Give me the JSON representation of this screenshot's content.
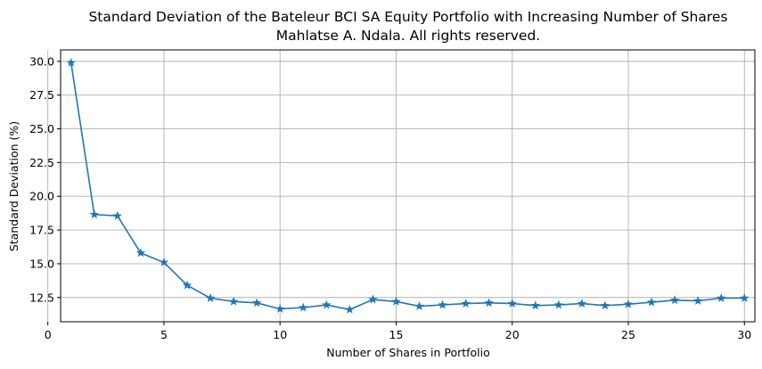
{
  "chart_data": {
    "type": "line",
    "title": "Standard Deviation of the Bateleur BCI SA Equity Portfolio with Increasing Number of Shares",
    "subtitle": "Mahlatse A. Ndala. All rights reserved.",
    "xlabel": "Number of Shares in Portfolio",
    "ylabel": "Standard Deviation (%)",
    "xlim": [
      0.55,
      30.45
    ],
    "ylim": [
      10.7,
      30.85
    ],
    "xticks": [
      0,
      5,
      10,
      15,
      20,
      25,
      30
    ],
    "xtick_labels": [
      "0",
      "5",
      "10",
      "15",
      "20",
      "25",
      "30"
    ],
    "yticks": [
      12.5,
      15.0,
      17.5,
      20.0,
      22.5,
      25.0,
      27.5,
      30.0
    ],
    "ytick_labels": [
      "12.5",
      "15.0",
      "17.5",
      "20.0",
      "22.5",
      "25.0",
      "27.5",
      "30.0"
    ],
    "grid": true,
    "marker": "star",
    "color": "#1f77b4",
    "x": [
      1,
      2,
      3,
      4,
      5,
      6,
      7,
      8,
      9,
      10,
      11,
      12,
      13,
      14,
      15,
      16,
      17,
      18,
      19,
      20,
      21,
      22,
      23,
      24,
      25,
      26,
      27,
      28,
      29,
      30
    ],
    "values": [
      29.9,
      18.65,
      18.55,
      15.8,
      15.1,
      13.4,
      12.45,
      12.2,
      12.1,
      11.65,
      11.75,
      11.95,
      11.6,
      12.35,
      12.2,
      11.85,
      11.95,
      12.05,
      12.1,
      12.05,
      11.9,
      11.95,
      12.05,
      11.9,
      12.0,
      12.15,
      12.3,
      12.25,
      12.45,
      12.45
    ]
  }
}
